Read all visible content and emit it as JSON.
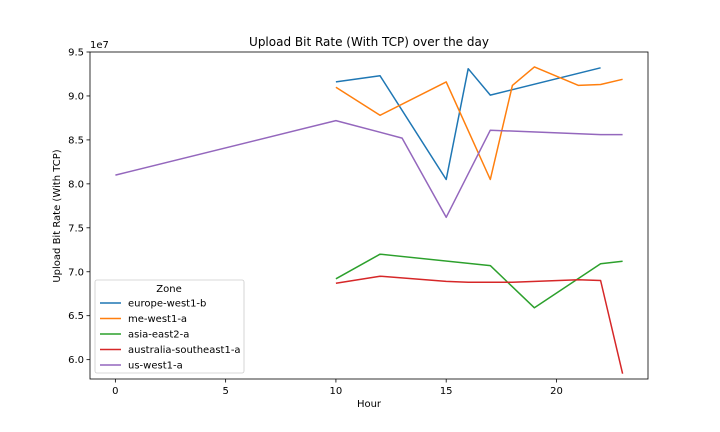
{
  "chart_data": {
    "type": "line",
    "title": "Upload Bit Rate (With TCP) over the day",
    "xlabel": "Hour",
    "ylabel": "Upload Bit Rate (With TCP)",
    "y_offset_label": "1e7",
    "xlim": [
      -1.15,
      24.15
    ],
    "ylim": [
      5.78,
      9.5
    ],
    "x_ticks": [
      0,
      5,
      10,
      15,
      20
    ],
    "y_ticks": [
      6.0,
      6.5,
      7.0,
      7.5,
      8.0,
      8.5,
      9.0,
      9.5
    ],
    "legend_title": "Zone",
    "legend_position": "lower-left",
    "grid": false,
    "series": [
      {
        "name": "europe-west1-b",
        "color": "#1f77b4",
        "points": [
          [
            10,
            9.16
          ],
          [
            12,
            9.23
          ],
          [
            15,
            8.05
          ],
          [
            16,
            9.31
          ],
          [
            17,
            9.01
          ],
          [
            22,
            9.32
          ]
        ]
      },
      {
        "name": "me-west1-a",
        "color": "#ff7f0e",
        "points": [
          [
            10,
            9.1
          ],
          [
            12,
            8.78
          ],
          [
            15,
            9.16
          ],
          [
            17,
            8.05
          ],
          [
            18,
            9.12
          ],
          [
            19,
            9.33
          ],
          [
            21,
            9.12
          ],
          [
            22,
            9.13
          ],
          [
            23,
            9.19
          ]
        ]
      },
      {
        "name": "asia-east2-a",
        "color": "#2ca02c",
        "points": [
          [
            10,
            6.92
          ],
          [
            12,
            7.2
          ],
          [
            17,
            7.07
          ],
          [
            19,
            6.59
          ],
          [
            22,
            7.09
          ],
          [
            23,
            7.12
          ]
        ]
      },
      {
        "name": "australia-southeast1-a",
        "color": "#d62728",
        "points": [
          [
            10,
            6.87
          ],
          [
            12,
            6.95
          ],
          [
            15,
            6.89
          ],
          [
            16,
            6.88
          ],
          [
            18,
            6.88
          ],
          [
            21,
            6.91
          ],
          [
            22,
            6.9
          ],
          [
            23,
            5.84
          ]
        ]
      },
      {
        "name": "us-west1-a",
        "color": "#9467bd",
        "points": [
          [
            0,
            8.1
          ],
          [
            10,
            8.72
          ],
          [
            13,
            8.52
          ],
          [
            15,
            7.62
          ],
          [
            17,
            8.61
          ],
          [
            22,
            8.56
          ],
          [
            23,
            8.56
          ]
        ]
      }
    ]
  }
}
